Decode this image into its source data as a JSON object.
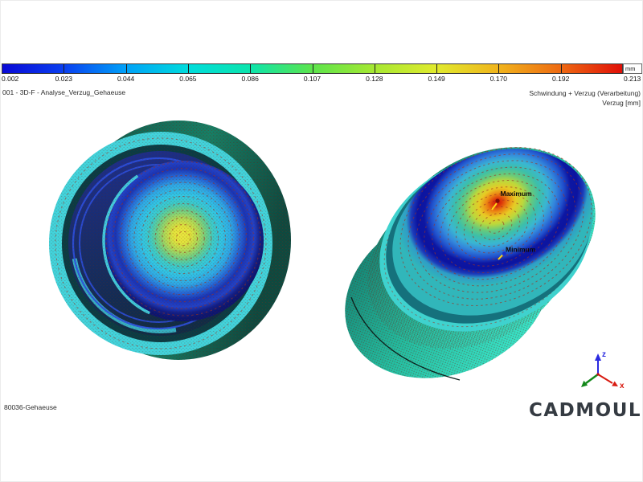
{
  "colorbar": {
    "ticks": [
      "0.002",
      "0.023",
      "0.044",
      "0.065",
      "0.086",
      "0.107",
      "0.128",
      "0.149",
      "0.170",
      "0.192",
      "0.213"
    ],
    "colors": [
      "#0909d6",
      "#0a40f0",
      "#00a2f8",
      "#00dcdc",
      "#0ce4ac",
      "#5ce44c",
      "#a6e832",
      "#e0ea2e",
      "#f0b41c",
      "#ee6a12",
      "#e01008"
    ],
    "unit": "mm"
  },
  "header": {
    "left": "001 - 3D-F - Analyse_Verzug_Gehaeuse",
    "right_line1": "Schwindung + Verzug (Verarbeitung)",
    "right_line2": "Verzug [mm]"
  },
  "scene": {
    "right_model": {
      "max_label": "Maximum",
      "min_label": "Minimum"
    },
    "axes": {
      "x": "x",
      "z": "z",
      "x_color": "#d81a10",
      "z_color": "#2a2ae0",
      "y_color": "#12881a"
    }
  },
  "footer": {
    "part_name": "80036-Gehaeuse",
    "brand": "CADMOULD"
  }
}
